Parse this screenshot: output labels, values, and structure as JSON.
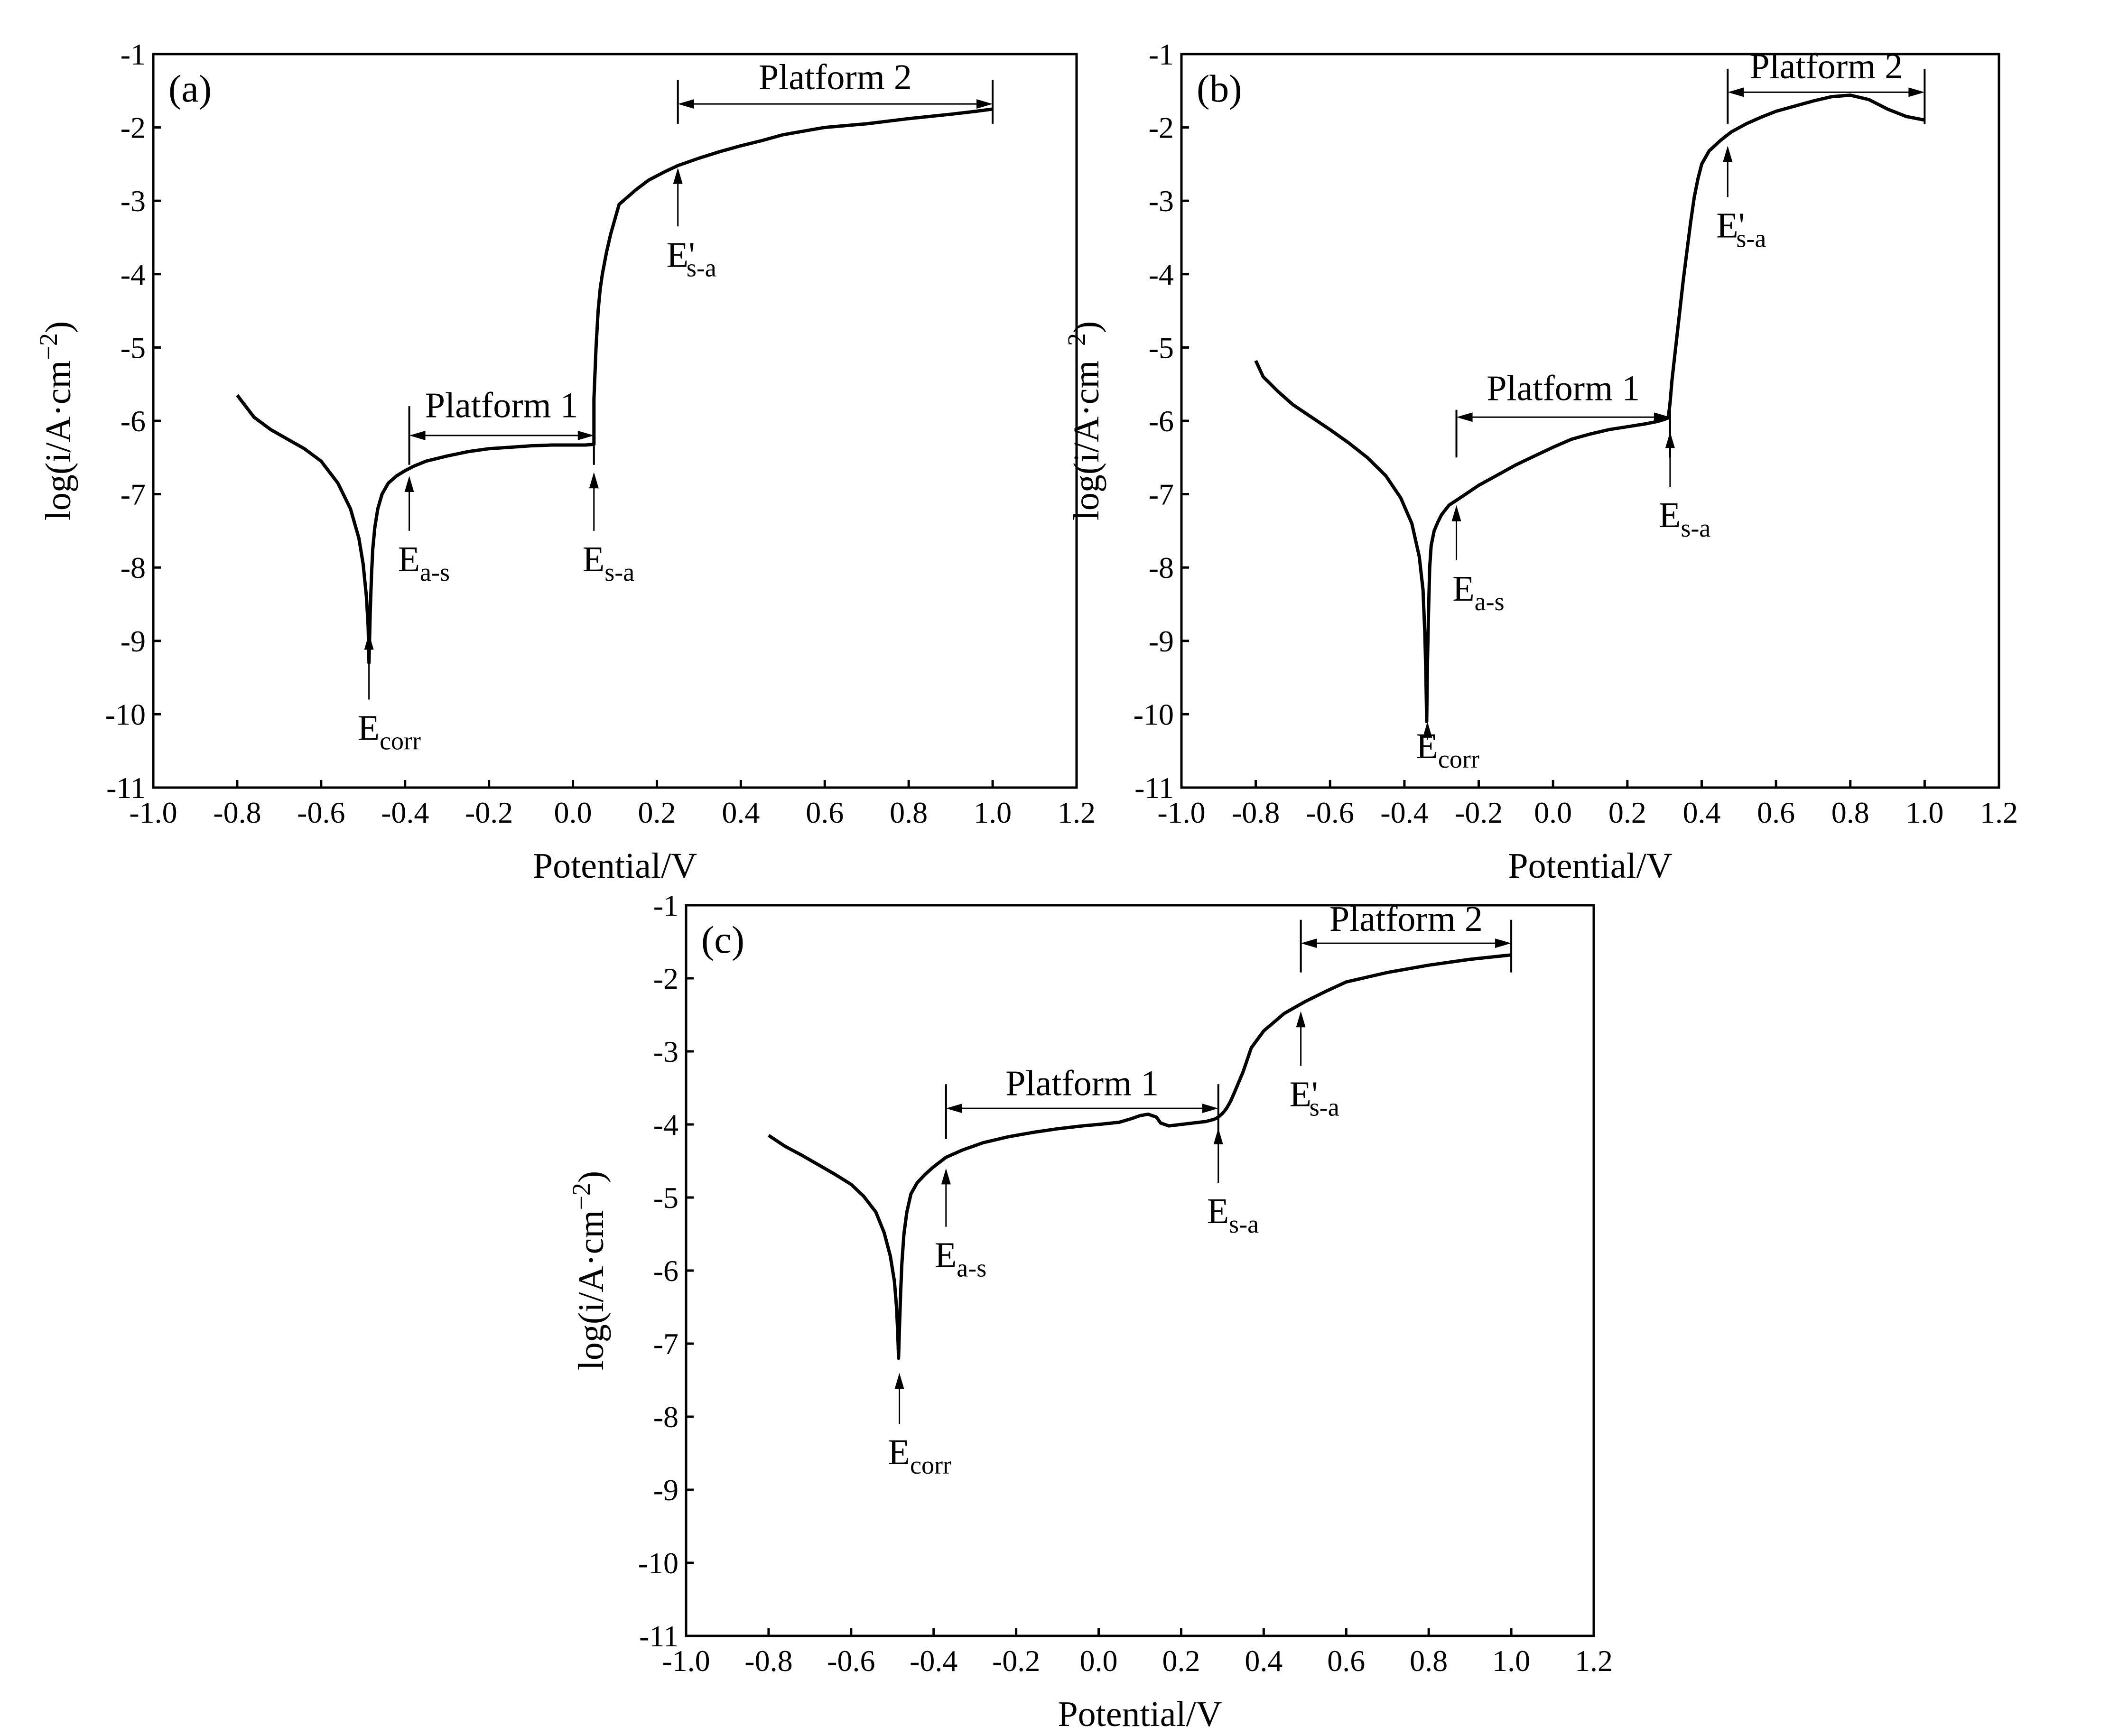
{
  "chart_data": [
    {
      "type": "line",
      "panel_label": "(a)",
      "xlabel": "Potential/V",
      "ylabel": "log(i/A·cm",
      "ylabel_superscript": "−2",
      "ylabel_close": ")",
      "xlim": [
        -1.0,
        1.2
      ],
      "ylim": [
        -11,
        -1
      ],
      "x_ticks": [
        "-1.0",
        "-0.8",
        "-0.6",
        "-0.4",
        "-0.2",
        "0.0",
        "0.2",
        "0.4",
        "0.6",
        "0.8",
        "1.0",
        "1.2"
      ],
      "y_ticks": [
        "-1",
        "-2",
        "-3",
        "-4",
        "-5",
        "-6",
        "-7",
        "-8",
        "-9",
        "-10",
        "-11"
      ],
      "series": [
        {
          "name": "polarization curve",
          "x": [
            -0.8,
            -0.76,
            -0.72,
            -0.68,
            -0.64,
            -0.6,
            -0.56,
            -0.53,
            -0.51,
            -0.5,
            -0.492,
            -0.488,
            -0.486,
            -0.483,
            -0.48,
            -0.477,
            -0.472,
            -0.465,
            -0.455,
            -0.44,
            -0.42,
            -0.4,
            -0.38,
            -0.35,
            -0.3,
            -0.25,
            -0.2,
            -0.15,
            -0.1,
            -0.05,
            0.0,
            0.03,
            0.05,
            0.05,
            0.05,
            0.055,
            0.06,
            0.065,
            0.07,
            0.08,
            0.09,
            0.1,
            0.11,
            0.13,
            0.15,
            0.18,
            0.22,
            0.25,
            0.3,
            0.35,
            0.4,
            0.45,
            0.5,
            0.55,
            0.6,
            0.7,
            0.8,
            0.9,
            0.96,
            1.0
          ],
          "y": [
            -5.65,
            -5.95,
            -6.12,
            -6.25,
            -6.38,
            -6.55,
            -6.85,
            -7.2,
            -7.6,
            -7.95,
            -8.4,
            -8.8,
            -9.3,
            -8.6,
            -8.1,
            -7.75,
            -7.45,
            -7.2,
            -7.0,
            -6.85,
            -6.75,
            -6.68,
            -6.62,
            -6.55,
            -6.48,
            -6.42,
            -6.38,
            -6.36,
            -6.34,
            -6.33,
            -6.33,
            -6.33,
            -6.32,
            -6.0,
            -5.7,
            -5.0,
            -4.5,
            -4.2,
            -4.0,
            -3.7,
            -3.45,
            -3.25,
            -3.05,
            -2.95,
            -2.85,
            -2.72,
            -2.6,
            -2.52,
            -2.42,
            -2.33,
            -2.25,
            -2.18,
            -2.1,
            -2.05,
            -2.0,
            -1.95,
            -1.88,
            -1.82,
            -1.78,
            -1.75
          ]
        }
      ],
      "annotations": [
        {
          "main": "E",
          "sub": "corr",
          "prime": "",
          "arrow_x": -0.486,
          "arrow_tip_y": -8.9,
          "arrow_tail_y": -9.8,
          "text_x": -0.486,
          "text_y": -10.35
        },
        {
          "main": "E",
          "sub": "a-s",
          "prime": "",
          "arrow_x": -0.39,
          "arrow_tip_y": -6.75,
          "arrow_tail_y": -7.5,
          "text_x": -0.39,
          "text_y": -8.05
        },
        {
          "main": "E",
          "sub": "s-a",
          "prime": "",
          "arrow_x": 0.05,
          "arrow_tip_y": -6.7,
          "arrow_tail_y": -7.5,
          "text_x": 0.05,
          "text_y": -8.05
        },
        {
          "main": "E",
          "sub": "s-a",
          "prime": "'",
          "arrow_x": 0.25,
          "arrow_tip_y": -2.55,
          "arrow_tail_y": -3.35,
          "text_x": 0.25,
          "text_y": -3.9
        }
      ],
      "platforms": [
        {
          "label": "Platform 1",
          "x_start": -0.39,
          "x_end": 0.05,
          "y": -6.2,
          "tick_top": -5.8,
          "tick_bottom": -6.6,
          "label_y": -5.95
        },
        {
          "label": "Platform 2",
          "x_start": 0.25,
          "x_end": 1.0,
          "y": -1.68,
          "tick_top": -1.35,
          "tick_bottom": -1.95,
          "label_y": -1.48
        }
      ]
    },
    {
      "type": "line",
      "panel_label": "(b)",
      "xlabel": "Potential/V",
      "ylabel": "log(i/A·cm",
      "ylabel_superscript": "−2",
      "ylabel_close": ")",
      "xlim": [
        -1.0,
        1.2
      ],
      "ylim": [
        -11,
        -1
      ],
      "x_ticks": [
        "-1.0",
        "-0.8",
        "-0.6",
        "-0.4",
        "-0.2",
        "0.0",
        "0.2",
        "0.4",
        "0.6",
        "0.8",
        "1.0",
        "1.2"
      ],
      "y_ticks": [
        "-1",
        "-2",
        "-3",
        "-4",
        "-5",
        "-6",
        "-7",
        "-8",
        "-9",
        "-10",
        "-11"
      ],
      "series": [
        {
          "name": "polarization curve",
          "x": [
            -0.8,
            -0.78,
            -0.74,
            -0.7,
            -0.65,
            -0.6,
            -0.55,
            -0.5,
            -0.45,
            -0.41,
            -0.38,
            -0.36,
            -0.35,
            -0.345,
            -0.342,
            -0.34,
            -0.338,
            -0.335,
            -0.332,
            -0.328,
            -0.32,
            -0.31,
            -0.3,
            -0.28,
            -0.25,
            -0.2,
            -0.15,
            -0.1,
            -0.05,
            0.0,
            0.05,
            0.1,
            0.15,
            0.2,
            0.25,
            0.28,
            0.3,
            0.31,
            0.315,
            0.32,
            0.33,
            0.34,
            0.35,
            0.36,
            0.37,
            0.38,
            0.39,
            0.4,
            0.42,
            0.45,
            0.48,
            0.52,
            0.56,
            0.6,
            0.65,
            0.7,
            0.75,
            0.8,
            0.85,
            0.9,
            0.95,
            1.0
          ],
          "y": [
            -5.18,
            -5.4,
            -5.6,
            -5.78,
            -5.95,
            -6.12,
            -6.3,
            -6.5,
            -6.75,
            -7.05,
            -7.4,
            -7.85,
            -8.3,
            -8.9,
            -9.5,
            -10.1,
            -9.3,
            -8.6,
            -8.0,
            -7.7,
            -7.5,
            -7.38,
            -7.28,
            -7.15,
            -7.05,
            -6.88,
            -6.74,
            -6.6,
            -6.48,
            -6.36,
            -6.25,
            -6.18,
            -6.12,
            -6.08,
            -6.04,
            -6.01,
            -5.98,
            -5.96,
            -5.75,
            -5.45,
            -5.0,
            -4.55,
            -4.1,
            -3.7,
            -3.3,
            -2.95,
            -2.7,
            -2.5,
            -2.32,
            -2.18,
            -2.06,
            -1.95,
            -1.86,
            -1.78,
            -1.71,
            -1.64,
            -1.58,
            -1.56,
            -1.62,
            -1.75,
            -1.85,
            -1.9
          ]
        }
      ],
      "annotations": [
        {
          "main": "E",
          "sub": "corr",
          "prime": "",
          "arrow_x": -0.338,
          "arrow_tip_y": -10.1,
          "arrow_tail_y": -10.35,
          "text_x": -0.338,
          "text_y": -10.6
        },
        {
          "main": "E",
          "sub": "a-s",
          "prime": "",
          "arrow_x": -0.26,
          "arrow_tip_y": -7.15,
          "arrow_tail_y": -7.9,
          "text_x": -0.24,
          "text_y": -8.45
        },
        {
          "main": "E",
          "sub": "s-a",
          "prime": "",
          "arrow_x": 0.315,
          "arrow_tip_y": -6.15,
          "arrow_tail_y": -6.9,
          "text_x": 0.315,
          "text_y": -7.45
        },
        {
          "main": "E",
          "sub": "s-a",
          "prime": "'",
          "arrow_x": 0.47,
          "arrow_tip_y": -2.25,
          "arrow_tail_y": -2.95,
          "text_x": 0.47,
          "text_y": -3.5
        }
      ],
      "platforms": [
        {
          "label": "Platform 1",
          "x_start": -0.26,
          "x_end": 0.315,
          "y": -5.95,
          "tick_top": -5.85,
          "tick_bottom": -6.5,
          "label_y": -5.72
        },
        {
          "label": "Platform 2",
          "x_start": 0.47,
          "x_end": 1.0,
          "y": -1.52,
          "tick_top": -1.2,
          "tick_bottom": -1.95,
          "label_y": -1.33
        }
      ]
    },
    {
      "type": "line",
      "panel_label": "(c)",
      "xlabel": "Potential/V",
      "ylabel": "log(i/A·cm",
      "ylabel_superscript": "−2",
      "ylabel_close": ")",
      "xlim": [
        -1.0,
        1.2
      ],
      "ylim": [
        -11,
        -1
      ],
      "x_ticks": [
        "-1.0",
        "-0.8",
        "-0.6",
        "-0.4",
        "-0.2",
        "0.0",
        "0.2",
        "0.4",
        "0.6",
        "0.8",
        "1.0",
        "1.2"
      ],
      "y_ticks": [
        "-1",
        "-2",
        "-3",
        "-4",
        "-5",
        "-6",
        "-7",
        "-8",
        "-9",
        "-10",
        "-11"
      ],
      "series": [
        {
          "name": "polarization curve",
          "x": [
            -0.8,
            -0.76,
            -0.72,
            -0.68,
            -0.64,
            -0.6,
            -0.57,
            -0.54,
            -0.52,
            -0.505,
            -0.495,
            -0.49,
            -0.487,
            -0.485,
            -0.483,
            -0.48,
            -0.477,
            -0.472,
            -0.465,
            -0.455,
            -0.44,
            -0.42,
            -0.4,
            -0.37,
            -0.33,
            -0.28,
            -0.22,
            -0.16,
            -0.1,
            -0.04,
            0.0,
            0.05,
            0.08,
            0.1,
            0.12,
            0.14,
            0.15,
            0.17,
            0.2,
            0.23,
            0.26,
            0.28,
            0.29,
            0.3,
            0.31,
            0.32,
            0.33,
            0.35,
            0.37,
            0.4,
            0.45,
            0.5,
            0.55,
            0.6,
            0.7,
            0.8,
            0.9,
            1.0
          ],
          "y": [
            -4.15,
            -4.3,
            -4.42,
            -4.55,
            -4.68,
            -4.82,
            -4.98,
            -5.2,
            -5.48,
            -5.8,
            -6.15,
            -6.5,
            -6.85,
            -7.2,
            -6.8,
            -6.3,
            -5.9,
            -5.5,
            -5.2,
            -4.95,
            -4.8,
            -4.68,
            -4.58,
            -4.45,
            -4.35,
            -4.25,
            -4.17,
            -4.11,
            -4.06,
            -4.02,
            -4.0,
            -3.97,
            -3.92,
            -3.88,
            -3.86,
            -3.9,
            -3.98,
            -4.02,
            -4.0,
            -3.98,
            -3.96,
            -3.93,
            -3.9,
            -3.85,
            -3.78,
            -3.68,
            -3.55,
            -3.28,
            -2.95,
            -2.72,
            -2.48,
            -2.32,
            -2.18,
            -2.05,
            -1.92,
            -1.82,
            -1.74,
            -1.68
          ]
        }
      ],
      "annotations": [
        {
          "main": "E",
          "sub": "corr",
          "prime": "",
          "arrow_x": -0.483,
          "arrow_tip_y": -7.4,
          "arrow_tail_y": -8.1,
          "text_x": -0.483,
          "text_y": -8.65
        },
        {
          "main": "E",
          "sub": "a-s",
          "prime": "",
          "arrow_x": -0.37,
          "arrow_tip_y": -4.6,
          "arrow_tail_y": -5.4,
          "text_x": -0.37,
          "text_y": -5.95
        },
        {
          "main": "E",
          "sub": "s-a",
          "prime": "",
          "arrow_x": 0.29,
          "arrow_tip_y": -4.05,
          "arrow_tail_y": -4.8,
          "text_x": 0.29,
          "text_y": -5.35
        },
        {
          "main": "E",
          "sub": "s-a",
          "prime": "'",
          "arrow_x": 0.49,
          "arrow_tip_y": -2.45,
          "arrow_tail_y": -3.2,
          "text_x": 0.49,
          "text_y": -3.75
        }
      ],
      "platforms": [
        {
          "label": "Platform 1",
          "x_start": -0.37,
          "x_end": 0.29,
          "y": -3.78,
          "tick_top": -3.45,
          "tick_bottom": -4.2,
          "label_y": -3.6
        },
        {
          "label": "Platform 2",
          "x_start": 0.49,
          "x_end": 1.0,
          "y": -1.52,
          "tick_top": -1.2,
          "tick_bottom": -1.92,
          "label_y": -1.35
        }
      ]
    }
  ]
}
